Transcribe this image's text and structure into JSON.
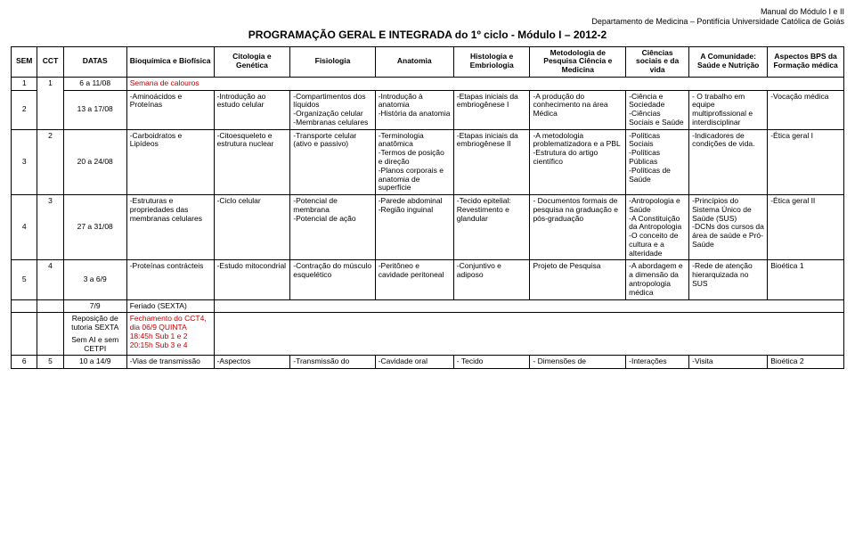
{
  "header": {
    "line1": "Manual do Módulo I e II",
    "line2": "Departamento de Medicina – Pontifícia Universidade Católica de Goiás",
    "title": "PROGRAMAÇÃO GERAL E INTEGRADA do 1º ciclo - Módulo I – 2012-2"
  },
  "columns": {
    "sem": "SEM",
    "cct": "CCT",
    "datas": "DATAS",
    "bio": "Bioquímica e Biofísica",
    "cit": "Citologia e Genética",
    "fis": "Fisiologia",
    "ana": "Anatomia",
    "his": "Histologia e Embriologia",
    "met": "Metodologia de Pesquisa Ciência e Medicina",
    "cie": "Ciências sociais e da vida",
    "com": "A Comunidade: Saúde e Nutrição",
    "bps": "Aspectos BPS da Formação médica"
  },
  "rows": {
    "r1": {
      "sem": "1",
      "datas": "6 a 11/08",
      "bio": "Semana de calouros"
    },
    "r2": {
      "sem": "2",
      "cct": "1",
      "datas": "13 a 17/08",
      "bio": "-Aminoácidos e Proteínas",
      "cit": "-Introdução ao estudo celular",
      "fis": "-Compartimentos dos líquidos\n-Organização celular\n-Membranas celulares",
      "ana": "-Introdução à anatomia\n-História da anatomia",
      "his": "-Etapas iniciais da embriogênese I",
      "met": "-A produção do conhecimento na área Médica",
      "cie": "-Ciência e Sociedade\n-Ciências Sociais e Saúde",
      "com": "- O trabalho em equipe multiprofissional e interdisciplinar",
      "bps": "-Vocação médica"
    },
    "r3": {
      "sem": "3",
      "cct": "2",
      "datas": "20 a 24/08",
      "bio": "-Carboidratos e Lipídeos",
      "cit": "-Citoesqueleto e estrutura nuclear",
      "fis": "-Transporte celular\n(ativo e passivo)",
      "ana": "-Terminologia anatômica\n-Termos de posição e direção\n-Planos corporais e anatomia de superfície",
      "his": "-Etapas iniciais da embriogênese II",
      "met": "-A metodologia problematizadora e a PBL\n-Estrutura do artigo científico",
      "cie": "-Políticas Sociais\n-Políticas Públicas\n-Políticas de Saúde",
      "com": "-Indicadores de condições de vida.",
      "bps": "-Ética geral I"
    },
    "r4": {
      "sem": "4",
      "cct": "3",
      "datas": "27 a 31/08",
      "bio": "-Estruturas e propriedades das membranas celulares",
      "cit": "-Ciclo celular",
      "fis": "-Potencial de membrana\n-Potencial de ação",
      "ana": "-Parede abdominal\n-Região inguinal",
      "his": "-Tecido epitelial: Revestimento e glandular",
      "met": "- Documentos formais de pesquisa na graduação e pós-graduação",
      "cie": "-Antropologia e Saúde\n-A Constituição da Antropologia\n-O conceito de cultura e a alteridade",
      "com": "-Princípios do Sistema Único de Saúde (SUS)\n-DCNs dos cursos da área de saúde e Pró-Saúde",
      "bps": "-Ética geral II"
    },
    "r5": {
      "sem": "5",
      "cct": "4",
      "datas": "3 a 6/9",
      "bio": "-Proteínas contrácteis",
      "cit": "-Estudo mitocondrial",
      "fis": "-Contração do músculo esquelético",
      "ana": "-Peritôneo e cavidade peritoneal",
      "his": "-Conjuntivo e adiposo",
      "met": "Projeto de Pesquisa",
      "cie": "-A abordagem e a dimensão da antropologia médica",
      "com": "-Rede de atenção hierarquizada no SUS",
      "bps": "Bioética 1"
    },
    "r6": {
      "datas": "7/9",
      "bio": "Feriado (SEXTA)"
    },
    "r7a": {
      "datas": "Reposição de tutoria SEXTA",
      "bio_redA": "Fechamento do CCT4, dia 06/9 QUINTA",
      "bio_redB": "18:45h Sub 1 e 2",
      "bio_redC": "20:15h Sub 3 e 4"
    },
    "r7b": {
      "datas": "Sem AI e sem CETPI"
    },
    "r8": {
      "sem": "6",
      "cct": "5",
      "datas": "10 a 14/9",
      "bio": "-Vias de transmissão",
      "cit": "-Aspectos",
      "fis": "-Transmissão do",
      "ana": "-Cavidade oral",
      "his": "- Tecido",
      "met": "- Dimensões de",
      "cie": "-Interações",
      "com": "-Visita",
      "bps": "Bioética 2"
    }
  }
}
